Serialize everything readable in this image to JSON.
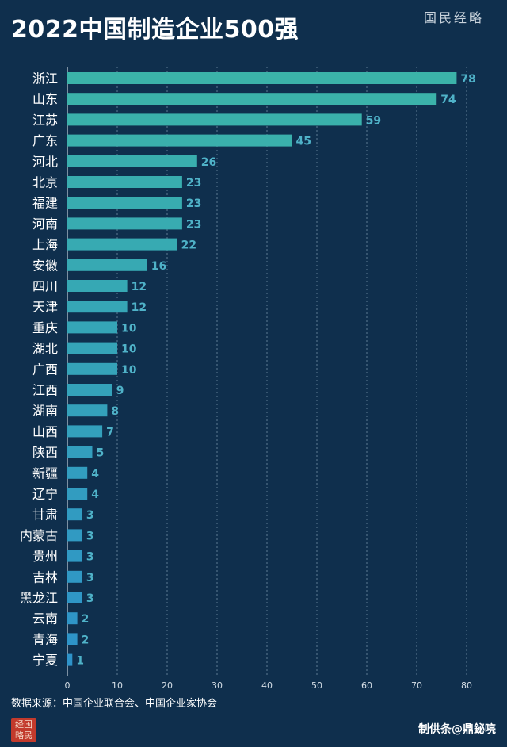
{
  "header": {
    "title": "2022中国制造企业500强",
    "logo_text": "国民经略"
  },
  "chart_data": {
    "type": "bar",
    "orientation": "horizontal",
    "title": "2022中国制造企业500强",
    "categories": [
      "浙江",
      "山东",
      "江苏",
      "广东",
      "河北",
      "北京",
      "福建",
      "河南",
      "上海",
      "安徽",
      "四川",
      "天津",
      "重庆",
      "湖北",
      "广西",
      "江西",
      "湖南",
      "山西",
      "陕西",
      "新疆",
      "辽宁",
      "甘肃",
      "内蒙古",
      "贵州",
      "吉林",
      "黑龙江",
      "云南",
      "青海",
      "宁夏"
    ],
    "values": [
      78,
      74,
      59,
      45,
      26,
      23,
      23,
      23,
      22,
      16,
      12,
      12,
      10,
      10,
      10,
      9,
      8,
      7,
      5,
      4,
      4,
      3,
      3,
      3,
      3,
      3,
      2,
      2,
      1
    ],
    "xlim": [
      0,
      80
    ],
    "xticks": [
      0,
      10,
      20,
      30,
      40,
      50,
      60,
      70,
      80
    ],
    "grid": true,
    "colors": {
      "top": "#3bb3a9",
      "bottom": "#2e93c9",
      "label": "#4fb2c8",
      "grid": "#5e7b93"
    }
  },
  "footer": {
    "source": "数据来源：中国企业联合会、中国企业家协会",
    "stamp_text": "经国略民",
    "right_text": "制供条@鼎鉍喨"
  }
}
